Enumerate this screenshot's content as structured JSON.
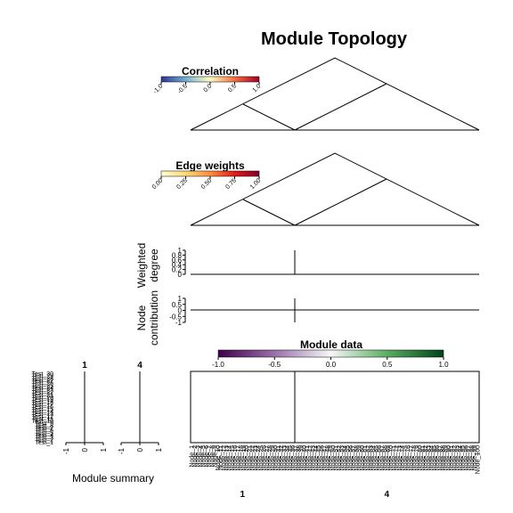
{
  "chart_data": {
    "type": "module topology (triangle topology diagrams, bar/line panels, heatmap)",
    "title": "Module Topology",
    "modules": [
      "1",
      "4"
    ],
    "correlation_legend": {
      "title": "Correlation",
      "ticks": [
        "-1.0",
        "-0.5",
        "0.0",
        "0.5",
        "1.0"
      ],
      "colors": [
        "#313695",
        "#74add1",
        "#ffffbf",
        "#f46d43",
        "#a50026"
      ]
    },
    "edge_weights_legend": {
      "title": "Edge weights",
      "ticks": [
        "0.00",
        "0.25",
        "0.50",
        "0.75",
        "1.00"
      ],
      "colors": [
        "#ffffcc",
        "#fed976",
        "#fd8d3c",
        "#e31a1c",
        "#800026"
      ]
    },
    "weighted_degree": {
      "ylabel": [
        "Weighted",
        "degree"
      ],
      "yticks": [
        "1",
        "0.8",
        "0.6",
        "0.4",
        "0.2",
        "0"
      ]
    },
    "node_contribution": {
      "ylabel": [
        "Node",
        "contribution"
      ],
      "yticks": [
        "1",
        "0.5",
        "0",
        "-0.5",
        "-1"
      ]
    },
    "module_data_legend": {
      "title": "Module data",
      "ticks": [
        "-1.0",
        "-0.5",
        "0.0",
        "0.5",
        "1.0"
      ],
      "colors": [
        "#40004b",
        "#9970ab",
        "#f7f7f7",
        "#5aae61",
        "#00441b"
      ]
    },
    "module_summary": {
      "xlabel": "Module summary",
      "xticks": [
        "-1",
        "0",
        "1"
      ],
      "sample_labels": [
        "Test_30",
        "Test_29",
        "Test_28",
        "Test_27",
        "Test_26",
        "Test_25",
        "Test_24",
        "Test_23",
        "Test_22",
        "Test_21",
        "Test_20",
        "Test_19",
        "Test_18",
        "Test_17",
        "Test_16",
        "Test_15",
        "Test_14",
        "Test_13",
        "Test_12",
        "Test_11",
        "Test_10",
        "Test_9",
        "Test_8",
        "Test_7",
        "Test_6",
        "Test_5",
        "Test_4",
        "Test_3",
        "Test_2",
        "Test_1"
      ]
    },
    "node_labels": [
      "Node_1",
      "Node_2",
      "Node_3",
      "Node_4",
      "Node_5",
      "Node_6",
      "Node_7",
      "Node_8",
      "Node_9",
      "Node_10",
      "Node_11",
      "Node_12",
      "Node_13",
      "Node_14",
      "Node_15",
      "Node_16",
      "Node_17",
      "Node_18",
      "Node_19",
      "Node_20",
      "Node_21",
      "Node_22",
      "Node_23",
      "Node_24",
      "Node_25",
      "Node_26",
      "Node_27",
      "Node_28",
      "Node_29",
      "Node_30",
      "Node_31",
      "Node_32",
      "Node_33",
      "Node_34",
      "Node_35",
      "Node_36",
      "Node_37",
      "Node_38",
      "Node_39",
      "Node_40",
      "Node_41",
      "Node_42",
      "Node_43",
      "Node_44",
      "Node_45",
      "Node_46",
      "Node_47",
      "Node_48",
      "Node_49",
      "Node_50",
      "Node_51",
      "Node_52",
      "Node_53",
      "Node_54",
      "Node_55",
      "Node_56",
      "Node_57",
      "Node_58",
      "Node_59",
      "Node_60",
      "Node_61",
      "Node_62",
      "Node_63",
      "Node_64",
      "Node_65",
      "Node_66",
      "Node_67",
      "Node_68",
      "Node_69",
      "Node_70",
      "Node_71",
      "Node_72",
      "Node_73",
      "Node_74",
      "Node_75",
      "Node_76",
      "Node_77",
      "Node_78",
      "Node_79",
      "Node_80",
      "Node_81",
      "Node_82",
      "Node_83",
      "Node_84",
      "Node_85",
      "Node_86",
      "Node_87",
      "Node_88",
      "Node_89",
      "Node_90",
      "Node_91",
      "Node_92",
      "Node_93",
      "Node_94",
      "Node_95",
      "Node_96",
      "Node_97",
      "Node_98",
      "Node_99",
      "Node_100"
    ],
    "module_node_counts": [
      36,
      64
    ]
  }
}
